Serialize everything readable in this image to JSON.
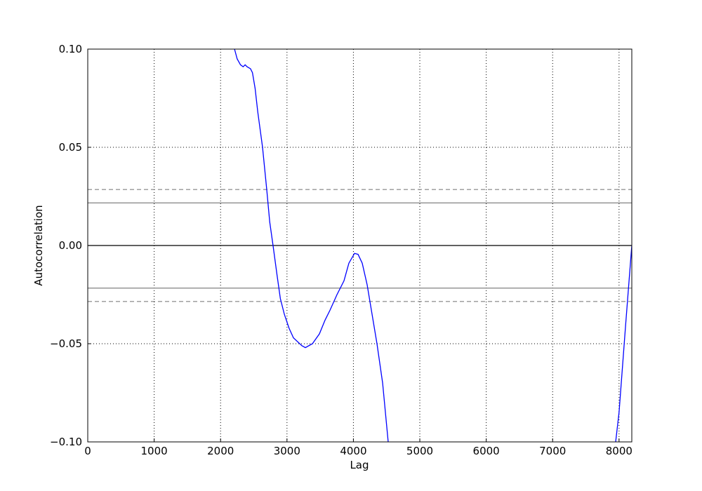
{
  "chart_data": {
    "type": "line",
    "xlabel": "Lag",
    "ylabel": "Autocorrelation",
    "xlim": [
      0,
      8192
    ],
    "ylim": [
      -0.1,
      0.1
    ],
    "xticks": [
      0,
      1000,
      2000,
      3000,
      4000,
      5000,
      6000,
      7000,
      8000
    ],
    "yticks": [
      {
        "value": -0.1,
        "label": "−0.10"
      },
      {
        "value": -0.05,
        "label": "−0.05"
      },
      {
        "value": 0,
        "label": "0.00"
      },
      {
        "value": 0.05,
        "label": "0.05"
      },
      {
        "value": 0.1,
        "label": "0.10"
      }
    ],
    "grid": true,
    "hlines": [
      {
        "value": 0.0285,
        "color": "#808080",
        "style": "dashed"
      },
      {
        "value": 0.0217,
        "color": "#808080",
        "style": "solid"
      },
      {
        "value": 0,
        "color": "#000000",
        "style": "solid"
      },
      {
        "value": -0.0217,
        "color": "#808080",
        "style": "solid"
      },
      {
        "value": -0.0285,
        "color": "#808080",
        "style": "dashed"
      }
    ],
    "series": [
      {
        "color": "#0000ff",
        "x": [
          2210,
          2250,
          2300,
          2340,
          2370,
          2400,
          2450,
          2480,
          2520,
          2560,
          2600,
          2632,
          2695,
          2740,
          2790,
          2850,
          2900,
          2960,
          3030,
          3097,
          3224,
          3277,
          3383,
          3488,
          3573,
          3647,
          3753,
          3858,
          3932,
          4017,
          4070,
          4133,
          4207,
          4281,
          4355,
          4440,
          4524,
          6000,
          7949,
          8000,
          8100,
          8192
        ],
        "values": [
          0.1,
          0.095,
          0.092,
          0.091,
          0.092,
          0.091,
          0.09,
          0.088,
          0.08,
          0.068,
          0.058,
          0.05,
          0.0285,
          0.012,
          0,
          -0.015,
          -0.027,
          -0.035,
          -0.042,
          -0.047,
          -0.051,
          -0.052,
          -0.05,
          -0.045,
          -0.038,
          -0.033,
          -0.025,
          -0.018,
          -0.009,
          -0.004,
          -0.0045,
          -0.009,
          -0.02,
          -0.035,
          -0.05,
          -0.07,
          -0.1,
          null,
          -0.1,
          -0.085,
          -0.04,
          0
        ]
      }
    ]
  }
}
